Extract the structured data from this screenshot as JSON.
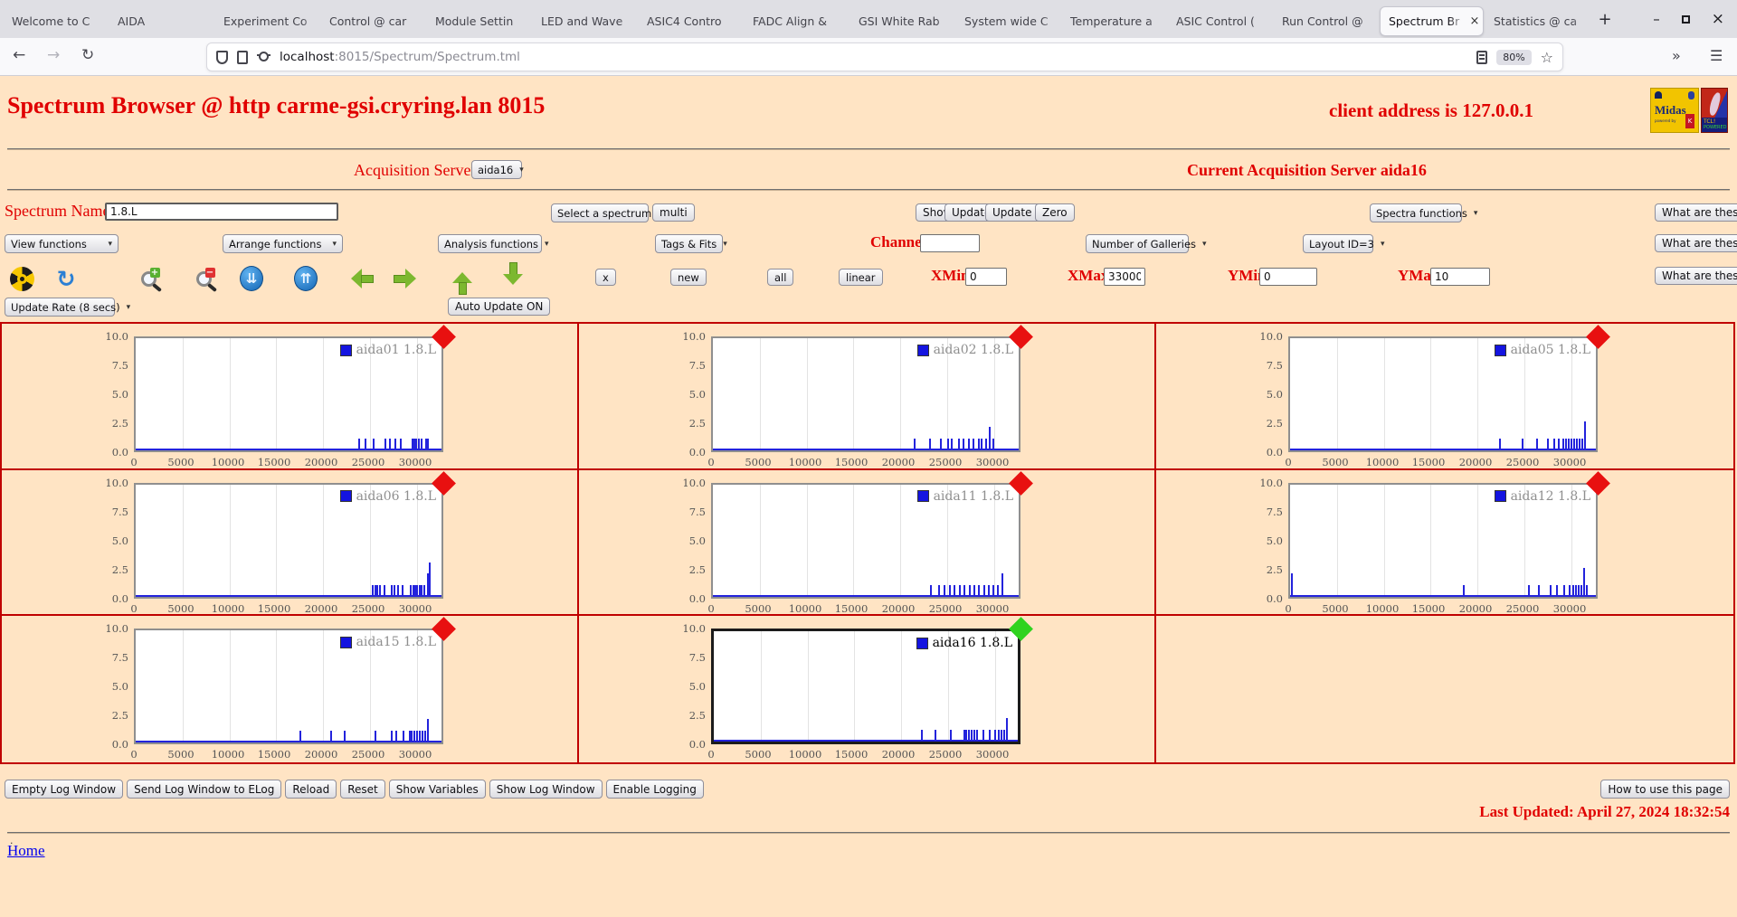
{
  "browser": {
    "tabs": [
      {
        "label": "Welcome to C",
        "active": false
      },
      {
        "label": "AIDA",
        "active": false
      },
      {
        "label": "Experiment Co",
        "active": false
      },
      {
        "label": "Control @ car",
        "active": false
      },
      {
        "label": "Module Settin",
        "active": false
      },
      {
        "label": "LED and Wave",
        "active": false
      },
      {
        "label": "ASIC4 Contro",
        "active": false
      },
      {
        "label": "FADC Align & ",
        "active": false
      },
      {
        "label": "GSI White Rab",
        "active": false
      },
      {
        "label": "System wide C",
        "active": false
      },
      {
        "label": "Temperature a",
        "active": false
      },
      {
        "label": "ASIC Control (",
        "active": false
      },
      {
        "label": "Run Control @",
        "active": false
      },
      {
        "label": "Spectrum Br",
        "active": true
      },
      {
        "label": "Statistics @ ca",
        "active": false
      }
    ],
    "new_tab": "+",
    "close_glyph": "×",
    "win_min": "–",
    "win_close": "×",
    "back": "←",
    "forward": "→",
    "reload": "↻",
    "url_host": "localhost",
    "url_rest": ":8015/Spectrum/Spectrum.tml",
    "zoom_badge": "80%",
    "star": "☆",
    "overflow": "»",
    "menu": "☰"
  },
  "header": {
    "title": "Spectrum Browser @ http carme-gsi.cryring.lan 8015",
    "client_address": "client address is 127.0.0.1",
    "midas_text": "Midas",
    "midas_sub": "powered by",
    "midas_badge": "K",
    "tcl_line1": "TCL!",
    "tcl_line2": "POWERED"
  },
  "acquisition": {
    "label": "Acquisition Servers",
    "selected_server": "aida16",
    "current_label": "Current Acquisition Server aida16"
  },
  "controls": {
    "spectrum_name_label": "Spectrum Name:",
    "spectrum_name_value": "1.8.L",
    "select_spectrum": "Select a spectrum",
    "multi": "multi",
    "show": "Show",
    "update": "Update",
    "update_all": "Update All",
    "zero": "Zero",
    "spectra_functions": "Spectra functions",
    "what_are_these": "What are these?",
    "view_functions": "View functions",
    "arrange_functions": "Arrange functions",
    "analysis_functions": "Analysis functions",
    "tags_fits": "Tags & Fits",
    "channel_label": "Channel:",
    "channel_value": "",
    "number_of_galleries": "Number of Galleries",
    "layout_id": "Layout ID=3",
    "x_button": "x",
    "new_button": "new",
    "all_button": "all",
    "linear_button": "linear",
    "xmin_label": "XMin",
    "xmin_value": "0",
    "xmax_label": "XMax",
    "xmax_value": "33000",
    "ymin_label": "YMin",
    "ymin_value": "0",
    "ymax_label": "YMax",
    "ymax_value": "10",
    "update_rate": "Update Rate (8 secs)",
    "auto_update": "Auto Update ON"
  },
  "toolbar_icons": [
    {
      "name": "radiation",
      "kind": "radiation"
    },
    {
      "name": "refresh",
      "kind": "refresh",
      "glyph": "↻"
    },
    {
      "name": "zoom-in",
      "kind": "magnifier-plus",
      "glyph": "+"
    },
    {
      "name": "zoom-out",
      "kind": "magnifier-minus",
      "glyph": "−"
    },
    {
      "name": "compress-y",
      "kind": "circle-down",
      "glyph": "⇊"
    },
    {
      "name": "expand-y",
      "kind": "circle-up",
      "glyph": "⇈"
    },
    {
      "name": "shift-left",
      "kind": "arrow-left"
    },
    {
      "name": "shift-right",
      "kind": "arrow-right"
    },
    {
      "name": "shift-up",
      "kind": "arrow-up"
    },
    {
      "name": "shift-down",
      "kind": "arrow-down"
    }
  ],
  "chart_data": {
    "type": "bar",
    "xlabel": "",
    "ylabel": "",
    "xlim": [
      0,
      33000
    ],
    "ylim": [
      0,
      10
    ],
    "x_ticks": [
      "0",
      "5000",
      "10000",
      "15000",
      "20000",
      "25000",
      "30000"
    ],
    "y_ticks": [
      "10.0",
      "7.5",
      "5.0",
      "2.5",
      "0.0"
    ],
    "grid": "vertical-only",
    "legend_position": "top-right",
    "panels": [
      {
        "legend": "aida01 1.8.L",
        "marker": "red",
        "selected": false,
        "spikes": [
          [
            23800,
            1
          ],
          [
            24500,
            1
          ],
          [
            25400,
            1
          ],
          [
            26600,
            1
          ],
          [
            27100,
            1
          ],
          [
            27700,
            1
          ],
          [
            28300,
            1
          ],
          [
            29500,
            1
          ],
          [
            29700,
            1
          ],
          [
            29950,
            1
          ],
          [
            30200,
            1
          ],
          [
            30450,
            1
          ],
          [
            30950,
            1
          ],
          [
            31200,
            1
          ]
        ]
      },
      {
        "legend": "aida02 1.8.L",
        "marker": "red",
        "selected": false,
        "spikes": [
          [
            21500,
            1
          ],
          [
            23200,
            1
          ],
          [
            24300,
            1
          ],
          [
            25100,
            1
          ],
          [
            25500,
            1
          ],
          [
            26200,
            1
          ],
          [
            26700,
            1
          ],
          [
            27300,
            1
          ],
          [
            27800,
            1
          ],
          [
            28400,
            1
          ],
          [
            28700,
            1
          ],
          [
            29100,
            1
          ],
          [
            29500,
            2
          ],
          [
            29900,
            1
          ]
        ]
      },
      {
        "legend": "aida05 1.8.L",
        "marker": "red",
        "selected": false,
        "spikes": [
          [
            22400,
            1
          ],
          [
            24800,
            1
          ],
          [
            26300,
            1
          ],
          [
            27500,
            1
          ],
          [
            28200,
            1
          ],
          [
            28700,
            1
          ],
          [
            29100,
            1
          ],
          [
            29400,
            1
          ],
          [
            29700,
            1
          ],
          [
            30000,
            1
          ],
          [
            30300,
            1
          ],
          [
            30600,
            1
          ],
          [
            30900,
            1
          ],
          [
            31200,
            1
          ],
          [
            31500,
            2.5
          ]
        ]
      },
      {
        "legend": "aida06 1.8.L",
        "marker": "red",
        "selected": false,
        "spikes": [
          [
            25300,
            1
          ],
          [
            25550,
            1
          ],
          [
            25800,
            1
          ],
          [
            26100,
            1
          ],
          [
            26500,
            1
          ],
          [
            27300,
            1
          ],
          [
            27600,
            1
          ],
          [
            28000,
            1
          ],
          [
            28500,
            1
          ],
          [
            29300,
            1
          ],
          [
            29600,
            1
          ],
          [
            29850,
            1
          ],
          [
            30050,
            1
          ],
          [
            30250,
            1
          ],
          [
            30500,
            1
          ],
          [
            30800,
            1
          ],
          [
            31150,
            2
          ],
          [
            31350,
            3
          ]
        ]
      },
      {
        "legend": "aida11 1.8.L",
        "marker": "red",
        "selected": false,
        "spikes": [
          [
            23300,
            1
          ],
          [
            24100,
            1
          ],
          [
            24700,
            1
          ],
          [
            25300,
            1
          ],
          [
            25800,
            1
          ],
          [
            26300,
            1
          ],
          [
            26800,
            1
          ],
          [
            27400,
            1
          ],
          [
            27900,
            1
          ],
          [
            28400,
            1
          ],
          [
            28900,
            1
          ],
          [
            29400,
            1
          ],
          [
            29900,
            1
          ],
          [
            30400,
            1
          ],
          [
            30900,
            2
          ]
        ]
      },
      {
        "legend": "aida12 1.8.L",
        "marker": "red",
        "selected": false,
        "spikes": [
          [
            200,
            2
          ],
          [
            18500,
            1
          ],
          [
            25500,
            1
          ],
          [
            26500,
            1
          ],
          [
            27800,
            1
          ],
          [
            28500,
            1
          ],
          [
            29200,
            1
          ],
          [
            29800,
            1
          ],
          [
            30200,
            1
          ],
          [
            30500,
            1
          ],
          [
            30800,
            1
          ],
          [
            31100,
            1
          ],
          [
            31400,
            2.5
          ],
          [
            31650,
            1
          ]
        ]
      },
      {
        "legend": "aida15 1.8.L",
        "marker": "red",
        "selected": false,
        "spikes": [
          [
            17600,
            1
          ],
          [
            20800,
            1
          ],
          [
            22300,
            1
          ],
          [
            25600,
            1
          ],
          [
            27300,
            1
          ],
          [
            27800,
            1
          ],
          [
            28600,
            1
          ],
          [
            29200,
            1
          ],
          [
            29450,
            1
          ],
          [
            29700,
            1
          ],
          [
            30000,
            1
          ],
          [
            30300,
            1
          ],
          [
            30600,
            1
          ],
          [
            30900,
            1
          ],
          [
            31200,
            2
          ]
        ]
      },
      {
        "legend": "aida16 1.8.L",
        "marker": "green",
        "selected": true,
        "spikes": [
          [
            22200,
            1
          ],
          [
            23600,
            1
          ],
          [
            25300,
            1
          ],
          [
            26700,
            1
          ],
          [
            26950,
            1
          ],
          [
            27200,
            1
          ],
          [
            27500,
            1
          ],
          [
            27800,
            1
          ],
          [
            28100,
            1
          ],
          [
            28800,
            1
          ],
          [
            29400,
            1
          ],
          [
            30000,
            1
          ],
          [
            30400,
            1
          ],
          [
            30700,
            1
          ],
          [
            31000,
            1
          ],
          [
            31250,
            2
          ]
        ]
      }
    ]
  },
  "footer": {
    "buttons": [
      "Empty Log Window",
      "Send Log Window to ELog",
      "Reload",
      "Reset",
      "Show Variables",
      "Show Log Window",
      "Enable Logging"
    ],
    "help_button": "How to use this page",
    "last_updated": "Last Updated: April 27, 2024 18:32:54",
    "dot": ".",
    "home": "Home"
  },
  "colors": {
    "page_bg": "#FFE4C4",
    "accent_red": "#E00000",
    "grid_red": "#C00000",
    "spike_blue": "#2323DC",
    "marker_red": "#E81010",
    "marker_green": "#2FD31F",
    "link_blue": "#0000EE"
  }
}
